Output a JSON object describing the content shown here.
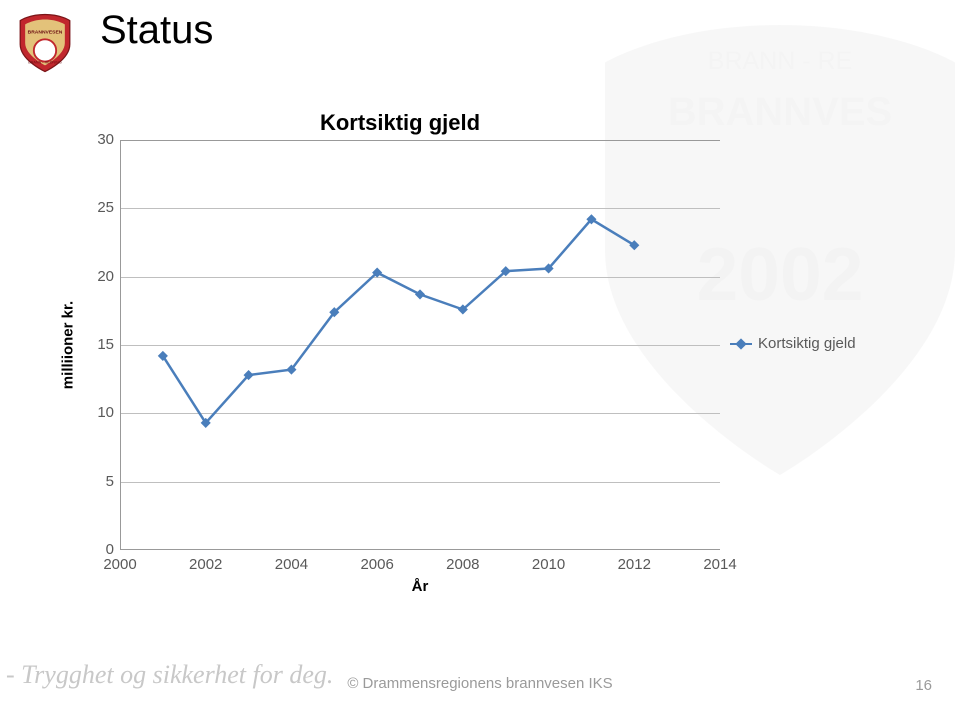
{
  "page": {
    "title": "Status",
    "footer_script": "- Trygghet og sikkerhet for deg.",
    "footer_center": "© Drammensregionens brannvesen IKS",
    "page_number": "16"
  },
  "chart": {
    "type": "line",
    "title": "Kortsiktig gjeld",
    "xlabel": "År",
    "ylabel": "milliioner kr.",
    "title_fontsize": 22,
    "label_fontsize": 15,
    "tick_fontsize": 15,
    "background_color": "#ffffff",
    "grid_color": "#bfbfbf",
    "axis_color": "#999999",
    "xlim": [
      2000,
      2014
    ],
    "ylim": [
      0,
      30
    ],
    "xtick_step": 2,
    "ytick_step": 5,
    "series": {
      "name": "Kortsiktig gjeld",
      "color": "#4a7ebb",
      "line_width": 2.5,
      "marker": "diamond",
      "marker_size": 8,
      "x": [
        2001,
        2002,
        2003,
        2004,
        2005,
        2006,
        2007,
        2008,
        2009,
        2010,
        2011,
        2012
      ],
      "y": [
        14.2,
        9.3,
        12.8,
        13.2,
        17.4,
        20.3,
        18.7,
        17.6,
        20.4,
        20.6,
        24.2,
        22.3
      ]
    },
    "legend": {
      "label": "Kortsiktig gjeld",
      "color": "#4a7ebb",
      "position": "right-middle"
    }
  },
  "colors": {
    "text": "#000000",
    "tick_text": "#595959",
    "footer_text": "#9a9a9a",
    "footer_script": "#c8c8c8",
    "logo_red": "#c1272d",
    "logo_gold": "#e3c27a",
    "logo_blue": "#2a4a7a",
    "watermark_opacity": 0.06
  }
}
